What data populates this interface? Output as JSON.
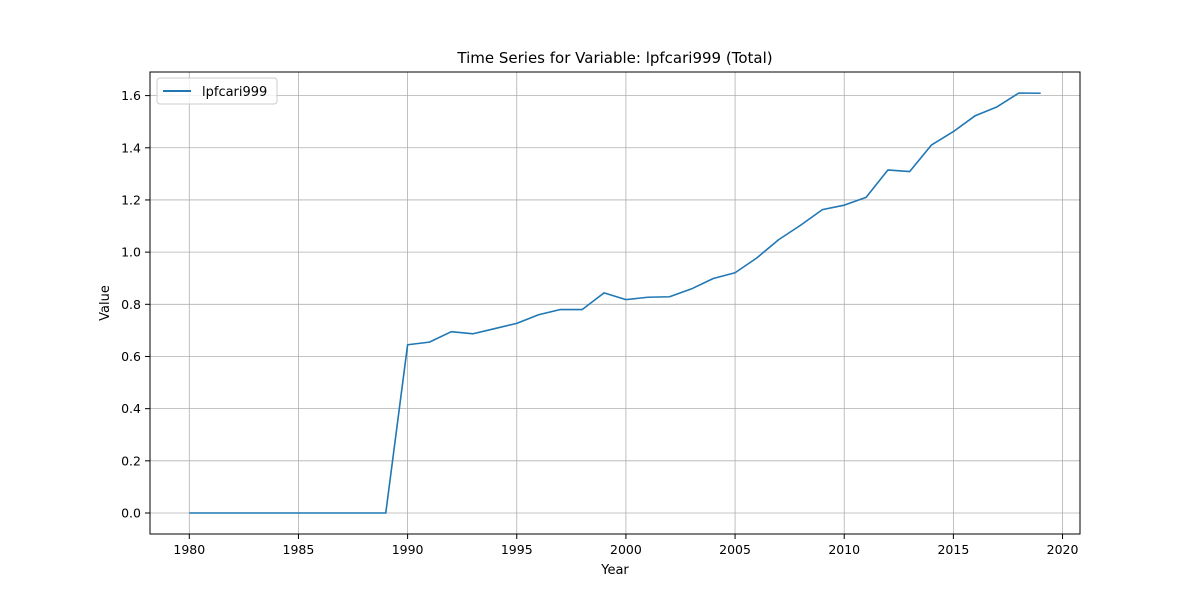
{
  "chart_data": {
    "type": "line",
    "title": "Time Series for Variable: lpfcari999 (Total)",
    "xlabel": "Year",
    "ylabel": "Value",
    "xlim": [
      1978.2,
      2020.8
    ],
    "ylim": [
      -0.0805,
      1.6905
    ],
    "xticks": [
      1980,
      1985,
      1990,
      1995,
      2000,
      2005,
      2010,
      2015,
      2020
    ],
    "yticks": [
      "0.0",
      "0.2",
      "0.4",
      "0.6",
      "0.8",
      "1.0",
      "1.2",
      "1.4",
      "1.6"
    ],
    "grid": true,
    "legend_position": "top-left",
    "line_color": "#1f77b4",
    "series": [
      {
        "name": "lpfcari999",
        "x": [
          1980,
          1981,
          1982,
          1983,
          1984,
          1985,
          1986,
          1987,
          1988,
          1989,
          1990,
          1991,
          1992,
          1993,
          1994,
          1995,
          1996,
          1997,
          1998,
          1999,
          2000,
          2001,
          2002,
          2003,
          2004,
          2005,
          2006,
          2007,
          2008,
          2009,
          2010,
          2011,
          2012,
          2013,
          2014,
          2015,
          2016,
          2017,
          2018,
          2019
        ],
        "y": [
          0,
          0,
          0,
          0,
          0,
          0,
          0,
          0,
          0,
          0,
          0.645,
          0.655,
          0.695,
          0.687,
          0.707,
          0.727,
          0.76,
          0.78,
          0.78,
          0.844,
          0.818,
          0.827,
          0.829,
          0.859,
          0.899,
          0.921,
          0.978,
          1.048,
          1.103,
          1.163,
          1.18,
          1.21,
          1.315,
          1.309,
          1.411,
          1.462,
          1.523,
          1.557,
          1.61,
          1.609
        ]
      }
    ]
  }
}
